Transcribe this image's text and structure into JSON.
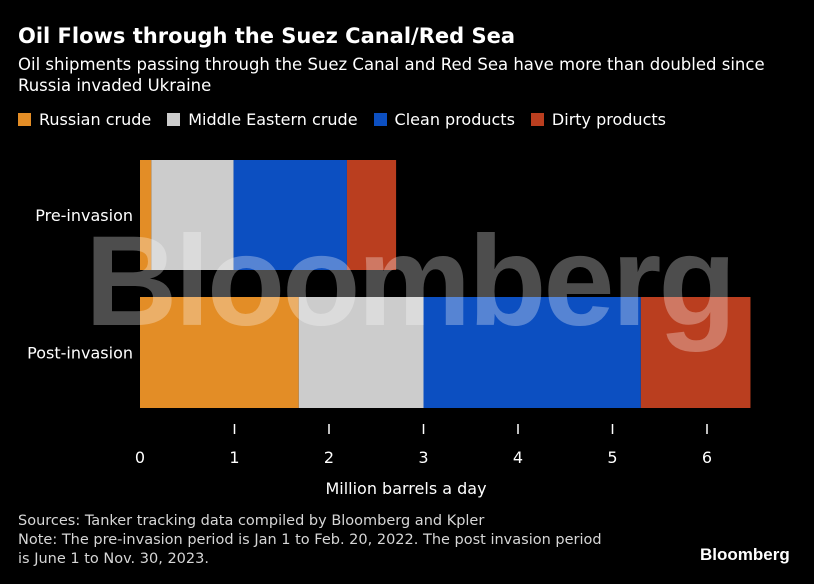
{
  "chart_data": {
    "type": "bar",
    "orientation": "horizontal",
    "stacked": true,
    "title": "Oil Flows through the Suez Canal/Red Sea",
    "subtitle": "Oil shipments passing through the Suez Canal and Red Sea have more than doubled since Russia invaded Ukraine",
    "categories": [
      "Pre-invasion",
      "Post-invasion"
    ],
    "series": [
      {
        "name": "Russian crude",
        "color": "#e38d26",
        "values": [
          0.12,
          1.68
        ]
      },
      {
        "name": "Middle Eastern crude",
        "color": "#cccccc",
        "values": [
          0.87,
          1.32
        ]
      },
      {
        "name": "Clean products",
        "color": "#0c4fc1",
        "values": [
          1.2,
          2.3
        ]
      },
      {
        "name": "Dirty products",
        "color": "#ba3e1f",
        "values": [
          0.52,
          1.16
        ]
      }
    ],
    "xlabel": "Million barrels a day",
    "ylabel": "",
    "xlim": [
      0,
      6.5
    ],
    "xticks": [
      "0",
      "1",
      "2",
      "3",
      "4",
      "5",
      "6"
    ],
    "grid": false,
    "legend_position": "top-left"
  },
  "footnote": {
    "sources": "Sources: Tanker tracking data compiled by Bloomberg and Kpler",
    "note_line1": "Note: The pre-invasion period is Jan 1 to Feb. 20, 2022. The post invasion period",
    "note_line2": "is June 1 to Nov. 30, 2023."
  },
  "logo": "Bloomberg",
  "watermark": "Bloomberg"
}
